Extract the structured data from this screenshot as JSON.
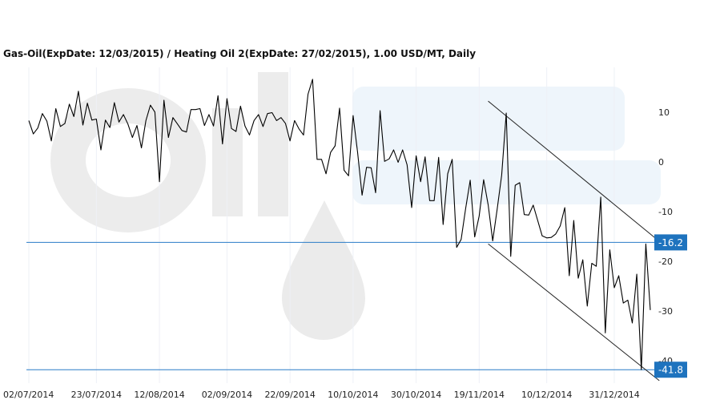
{
  "chart_data": {
    "type": "line",
    "title": "Gas-Oil(ExpDate: 12/03/2015) / Heating Oil 2(ExpDate: 27/02/2015), 1.00 USD/MT, Daily",
    "watermark": "OilStat",
    "xlabel": "",
    "ylabel": "",
    "x_ticks": [
      "02/07/2014",
      "23/07/2014",
      "12/08/2014",
      "02/09/2014",
      "22/09/2014",
      "10/10/2014",
      "30/10/2014",
      "19/11/2014",
      "10/12/2014",
      "31/12/2014"
    ],
    "y_ticks": [
      10,
      0,
      -10,
      -20,
      -30,
      -40
    ],
    "ylim": [
      -44.5,
      19
    ],
    "grid": "vertical",
    "line_color": "#000000",
    "level_color": "#2a7cc7",
    "label_bg": "#1e73be",
    "levels": [
      {
        "value": -16.2,
        "label": "-16.2"
      },
      {
        "value": -41.8,
        "label": "-41.8"
      }
    ],
    "channel": [
      {
        "from": {
          "i": 102,
          "y": 12.2
        },
        "to": {
          "i": 140,
          "y": -16
        }
      },
      {
        "from": {
          "i": 102,
          "y": -16.5
        },
        "to": {
          "i": 140,
          "y": -44
        }
      }
    ],
    "series": [
      {
        "values": [
          8.3,
          5.6,
          6.8,
          9.7,
          8.2,
          4.2,
          10.7,
          7.1,
          7.7,
          11.6,
          9.1,
          14.2,
          7.4,
          11.8,
          8.4,
          8.6,
          2.4,
          8.4,
          6.9,
          11.9,
          8.0,
          9.5,
          7.6,
          4.9,
          7.3,
          2.8,
          8.3,
          11.4,
          10.0,
          -4.0,
          12.4,
          4.9,
          8.9,
          7.6,
          6.3,
          6.0,
          10.5,
          10.5,
          10.7,
          7.3,
          9.5,
          7.2,
          13.3,
          3.6,
          12.7,
          6.7,
          6.1,
          11.2,
          7.2,
          5.4,
          8.3,
          9.5,
          7.1,
          9.7,
          9.9,
          8.3,
          8.9,
          7.7,
          4.2,
          8.3,
          6.6,
          5.4,
          13.6,
          16.6,
          0.5,
          0.5,
          -2.4,
          1.9,
          3.2,
          10.8,
          -1.7,
          -2.8,
          9.3,
          1.9,
          -6.7,
          -1.1,
          -1.2,
          -6.2,
          10.3,
          0.1,
          0.6,
          2.4,
          -0.1,
          2.4,
          -0.6,
          -9.2,
          1.2,
          -4.0,
          1.0,
          -7.8,
          -7.8,
          0.9,
          -12.6,
          -2.4,
          0.5,
          -17.2,
          -15.6,
          -9.4,
          -3.7,
          -15.1,
          -10.9,
          -3.6,
          -8.7,
          -15.9,
          -9.5,
          -2.7,
          9.8,
          -19.0,
          -4.7,
          -4.2,
          -10.6,
          -10.7,
          -8.7,
          -11.8,
          -14.9,
          -15.3,
          -15.2,
          -14.5,
          -12.9,
          -9.2,
          -22.9,
          -11.8,
          -23.4,
          -19.7,
          -29.0,
          -20.4,
          -21.0,
          -7.1,
          -34.4,
          -17.7,
          -25.3,
          -22.9,
          -28.4,
          -27.8,
          -32.4,
          -22.6,
          -41.8,
          -16.5,
          -29.8
        ]
      }
    ]
  }
}
